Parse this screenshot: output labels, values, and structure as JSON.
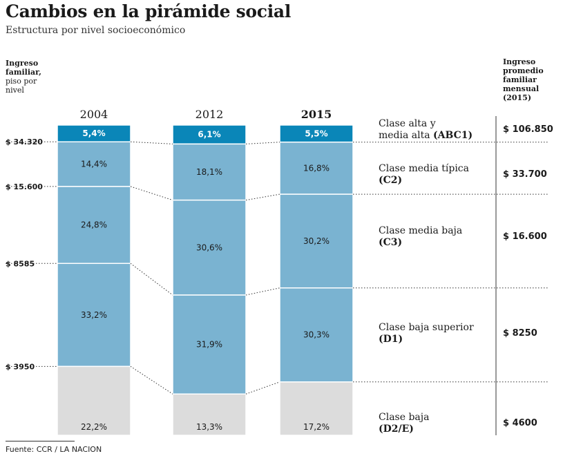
{
  "header": {
    "title": "Cambios en la pirámide social",
    "subtitle": "Estructura por nivel socioeconómico"
  },
  "left_header": {
    "line1": "Ingreso",
    "line2": "familiar,",
    "line3": "piso por",
    "line4": "nivel"
  },
  "right_header": {
    "line1": "Ingreso",
    "line2": "promedio",
    "line3": "familiar",
    "line4": "mensual",
    "line5": "(2015)"
  },
  "source": "Fuente: CCR / LA NACION",
  "colors": {
    "top": "#0a86b8",
    "mid": "#7ab3d1",
    "bottom": "#dcdcdc",
    "top_text": "#ffffff",
    "mid_text": "#1a1a1a"
  },
  "chart_data": {
    "type": "bar",
    "stacked": true,
    "title": "Cambios en la pirámide social",
    "subtitle": "Estructura por nivel socioeconómico",
    "unit": "%",
    "categories": [
      "2004",
      "2012",
      "2015"
    ],
    "highlight_category": "2015",
    "series": [
      {
        "key": "ABC1",
        "name_line1": "Clase alta y",
        "name_line2": "media alta",
        "name_bold": "(ABC1)",
        "income": "$ 106.850",
        "values": [
          5.4,
          6.1,
          5.5
        ],
        "labels": [
          "5,4%",
          "6,1%",
          "5,5%"
        ]
      },
      {
        "key": "C2",
        "name_line1": "Clase media típica",
        "name_line2": "",
        "name_bold": "(C2)",
        "income": "$ 33.700",
        "values": [
          14.4,
          18.1,
          16.8
        ],
        "labels": [
          "14,4%",
          "18,1%",
          "16,8%"
        ]
      },
      {
        "key": "C3",
        "name_line1": "Clase media baja",
        "name_line2": "",
        "name_bold": "(C3)",
        "income": "$ 16.600",
        "values": [
          24.8,
          30.6,
          30.2
        ],
        "labels": [
          "24,8%",
          "30,6%",
          "30,2%"
        ]
      },
      {
        "key": "D1",
        "name_line1": "Clase baja superior",
        "name_line2": "",
        "name_bold": "(D1)",
        "income": "$ 8250",
        "values": [
          33.2,
          31.9,
          30.3
        ],
        "labels": [
          "33,2%",
          "31,9%",
          "30,3%"
        ]
      },
      {
        "key": "D2E",
        "name_line1": "Clase baja",
        "name_line2": "",
        "name_bold": "(D2/E)",
        "income": "$ 4600",
        "values": [
          22.2,
          13.3,
          17.2
        ],
        "labels": [
          "22,2%",
          "13,3%",
          "17,2%"
        ]
      }
    ],
    "income_floors": [
      "$ 34.320",
      "$ 15.600",
      "$ 8585",
      "$ 3950"
    ]
  }
}
